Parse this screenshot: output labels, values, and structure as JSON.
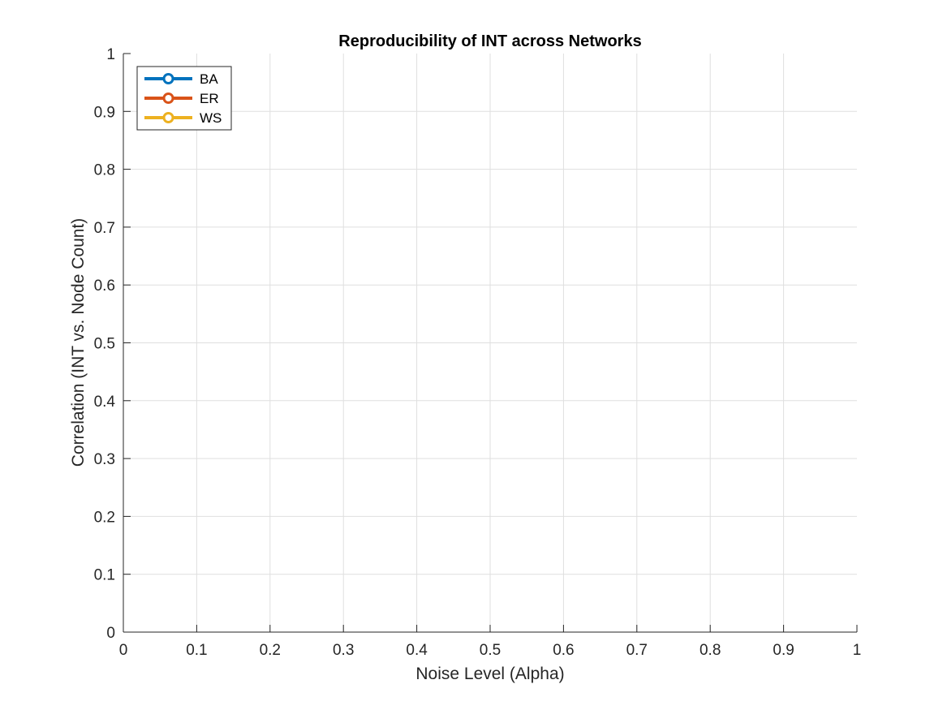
{
  "chart_data": {
    "type": "line",
    "title": "Reproducibility of INT across Networks",
    "xlabel": "Noise Level (Alpha)",
    "ylabel": "Correlation (INT vs. Node Count)",
    "xlim": [
      0,
      1
    ],
    "ylim": [
      0,
      1
    ],
    "xticks": [
      0,
      0.1,
      0.2,
      0.3,
      0.4,
      0.5,
      0.6,
      0.7,
      0.8,
      0.9,
      1
    ],
    "xtick_labels": [
      "0",
      "0.1",
      "0.2",
      "0.3",
      "0.4",
      "0.5",
      "0.6",
      "0.7",
      "0.8",
      "0.9",
      "1"
    ],
    "yticks": [
      0,
      0.1,
      0.2,
      0.3,
      0.4,
      0.5,
      0.6,
      0.7,
      0.8,
      0.9,
      1
    ],
    "ytick_labels": [
      "0",
      "0.1",
      "0.2",
      "0.3",
      "0.4",
      "0.5",
      "0.6",
      "0.7",
      "0.8",
      "0.9",
      "1"
    ],
    "grid": true,
    "legend_position": "top-left",
    "series": [
      {
        "name": "BA",
        "color": "#0072BD",
        "marker": "circle",
        "x": [],
        "y": []
      },
      {
        "name": "ER",
        "color": "#D95319",
        "marker": "circle",
        "x": [],
        "y": []
      },
      {
        "name": "WS",
        "color": "#EDB120",
        "marker": "circle",
        "x": [],
        "y": []
      }
    ]
  }
}
